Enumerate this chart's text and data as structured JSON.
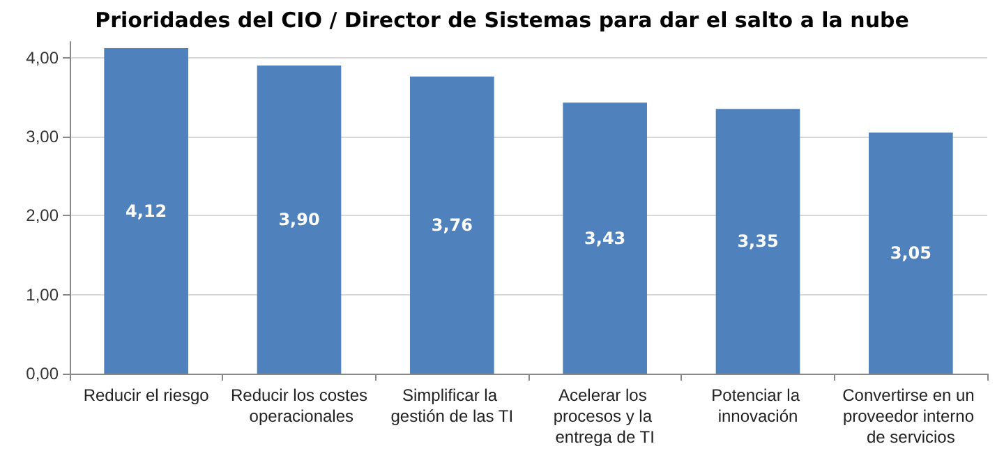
{
  "chart_data": {
    "type": "bar",
    "title": "Prioridades del CIO / Director de Sistemas para dar el salto a la nube",
    "categories": [
      "Reducir el riesgo",
      "Reducir los costes operacionales",
      "Simplificar la gestión de las TI",
      "Acelerar los procesos y la entrega de TI",
      "Potenciar la innovación",
      "Convertirse en un proveedor interno de servicios"
    ],
    "values": [
      4.12,
      3.9,
      3.76,
      3.43,
      3.35,
      3.05
    ],
    "value_labels": [
      "4,12",
      "3,90",
      "3,76",
      "3,43",
      "3,35",
      "3,05"
    ],
    "color": "#4f81bd",
    "ylim": [
      0,
      4.2
    ],
    "yticks": [
      {
        "value": 0,
        "label": "0,00"
      },
      {
        "value": 1,
        "label": "1,00"
      },
      {
        "value": 2,
        "label": "2,00"
      },
      {
        "value": 3,
        "label": "3,00"
      },
      {
        "value": 4,
        "label": "4,00"
      }
    ],
    "grid": "y"
  }
}
